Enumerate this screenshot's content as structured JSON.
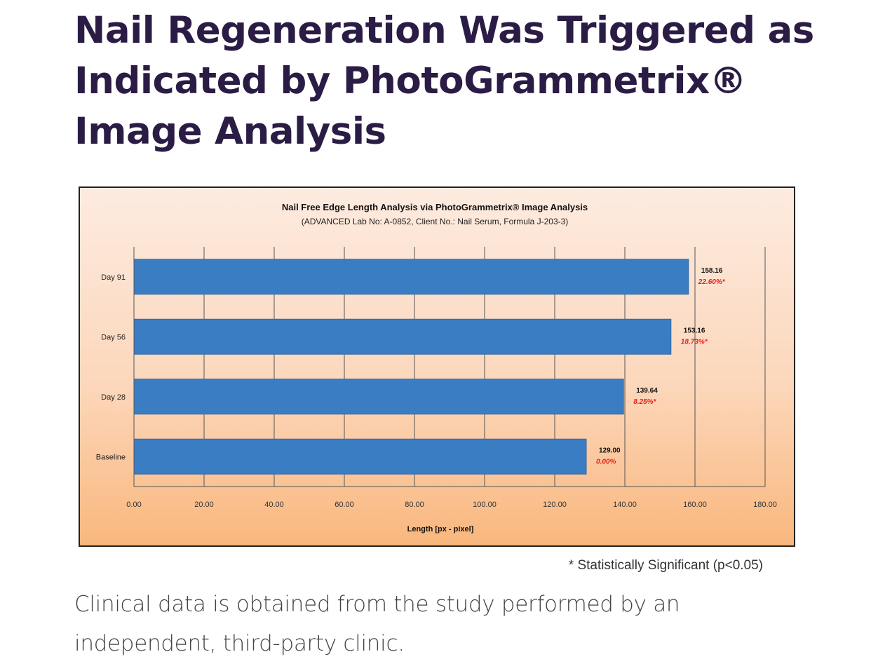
{
  "page": {
    "title": "Nail Regeneration Was Triggered as Indicated by PhotoGrammetrix® Image Analysis",
    "footnote": "* Statistically Significant (p<0.05)",
    "caption": "Clinical data is obtained from the study performed by an independent, third-party clinic."
  },
  "colors": {
    "title": "#2b1c45",
    "bar": "#3b7dc2",
    "percent_label": "#e8201a",
    "gridline": "#555555"
  },
  "chart_data": {
    "type": "bar",
    "orientation": "horizontal",
    "title": "Nail Free Edge Length Analysis via PhotoGrammetrix® Image Analysis",
    "subtitle": "(ADVANCED Lab No: A-0852, Client No.: Nail Serum, Formula J-203-3)",
    "xlabel": "Length [px - pixel]",
    "ylabel": "",
    "xlim": [
      0,
      180
    ],
    "x_ticks": [
      "0.00",
      "20.00",
      "40.00",
      "60.00",
      "80.00",
      "100.00",
      "120.00",
      "140.00",
      "160.00",
      "180.00"
    ],
    "categories": [
      "Day 91",
      "Day 56",
      "Day 28",
      "Baseline"
    ],
    "values": [
      158.16,
      153.16,
      139.64,
      129.0
    ],
    "value_labels": [
      "158.16",
      "153.16",
      "139.64",
      "129.00"
    ],
    "percent_labels": [
      "22.60%*",
      "18.73%*",
      "8.25%*",
      "0.00%"
    ],
    "grid": "vertical",
    "legend": "none"
  }
}
